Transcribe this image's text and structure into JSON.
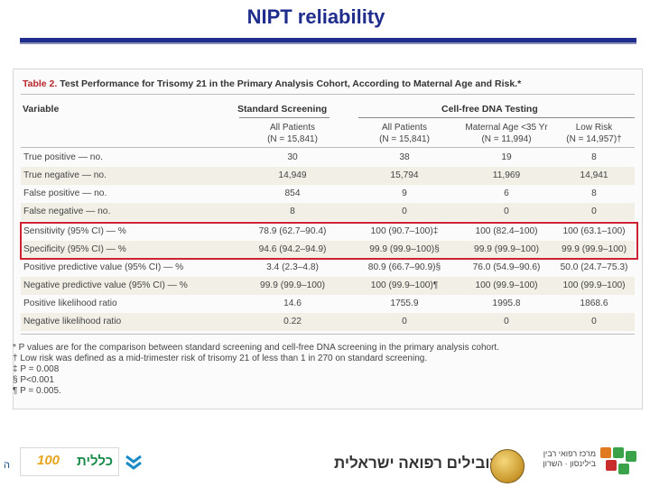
{
  "slide_title": "NIPT reliability",
  "caption": {
    "number": "Table 2.",
    "text": "Test Performance for Trisomy 21 in the Primary Analysis Cohort, According to Maternal Age and Risk.*"
  },
  "headers": {
    "variable": "Variable",
    "standard_screening": "Standard Screening",
    "cfdna_testing": "Cell-free DNA Testing",
    "sub": [
      {
        "line1": "All Patients",
        "line2": "(N = 15,841)"
      },
      {
        "line1": "All Patients",
        "line2": "(N = 15,841)"
      },
      {
        "line1": "Maternal Age <35 Yr",
        "line2": "(N = 11,994)"
      },
      {
        "line1": "Low Risk",
        "line2": "(N = 14,957)†"
      }
    ]
  },
  "rows": [
    {
      "label": "True positive — no.",
      "values": [
        "30",
        "38",
        "19",
        "8"
      ]
    },
    {
      "label": "True negative — no.",
      "values": [
        "14,949",
        "15,794",
        "11,969",
        "14,941"
      ]
    },
    {
      "label": "False positive — no.",
      "values": [
        "854",
        "9",
        "6",
        "8"
      ]
    },
    {
      "label": "False negative — no.",
      "values": [
        "8",
        "0",
        "0",
        "0"
      ]
    },
    {
      "label": "Sensitivity (95% CI) — %",
      "values": [
        "78.9 (62.7–90.4)",
        "100 (90.7–100)‡",
        "100 (82.4–100)",
        "100 (63.1–100)"
      ]
    },
    {
      "label": "Specificity (95% CI) — %",
      "values": [
        "94.6 (94.2–94.9)",
        "99.9 (99.9–100)§",
        "99.9 (99.9–100)",
        "99.9 (99.9–100)"
      ]
    },
    {
      "label": "Positive predictive value (95% CI) — %",
      "values": [
        "3.4 (2.3–4.8)",
        "80.9 (66.7–90.9)§",
        "76.0 (54.9–90.6)",
        "50.0 (24.7–75.3)"
      ]
    },
    {
      "label": "Negative predictive value (95% CI) — %",
      "values": [
        "99.9 (99.9–100)",
        "100 (99.9–100)¶",
        "100 (99.9–100)",
        "100 (99.9–100)"
      ]
    },
    {
      "label": "Positive likelihood ratio",
      "values": [
        "14.6",
        "1755.9",
        "1995.8",
        "1868.6"
      ]
    },
    {
      "label": "Negative likelihood ratio",
      "values": [
        "0.22",
        "0",
        "0",
        "0"
      ]
    }
  ],
  "footnotes": [
    "* P values are for the comparison between standard screening and cell-free DNA screening in the primary analysis cohort.",
    "† Low risk was defined as a mid-trimester risk of trisomy 21 of less than 1 in 270 on standard screening.",
    "‡ P = 0.008",
    "§ P<0.001",
    "¶ P = 0.005."
  ],
  "footer": {
    "left_text": "ה",
    "clalit_name": "כללית",
    "clalit_number": "100",
    "slogan": "מובילים רפואה ישראלית",
    "hospital_name": "מרכז רפואי רבין בילינסון · השרון"
  },
  "colors": {
    "title": "#1f2d8c",
    "highlight_border": "#cc2233",
    "caption_number": "#b8252b"
  }
}
